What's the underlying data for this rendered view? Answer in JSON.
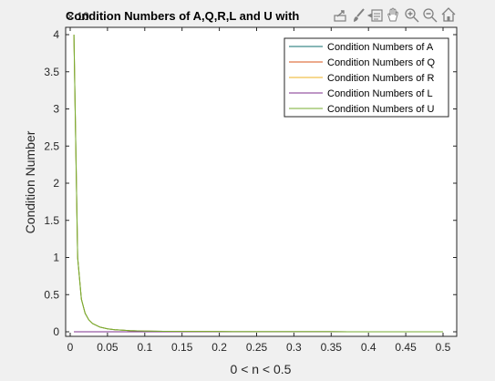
{
  "chart_data": {
    "type": "line",
    "title": "Condition Numbers of A,Q,R,L and U with",
    "xlabel": "0 < n < 0.5",
    "ylabel": "Condition Number",
    "y_exponent_label": "× 10",
    "xlim": [
      0,
      0.5
    ],
    "ylim": [
      0,
      4
    ],
    "x_ticks": [
      0,
      0.05,
      0.1,
      0.15,
      0.2,
      0.25,
      0.3,
      0.35,
      0.4,
      0.45,
      0.5
    ],
    "x_tick_labels": [
      "0",
      "0.05",
      "0.1",
      "0.15",
      "0.2",
      "0.25",
      "0.3",
      "0.35",
      "0.4",
      "0.45",
      "0.5"
    ],
    "y_ticks": [
      0,
      0.5,
      1,
      1.5,
      2,
      2.5,
      3,
      3.5,
      4
    ],
    "y_tick_labels": [
      "0",
      "0.5",
      "1",
      "1.5",
      "2",
      "2.5",
      "3",
      "3.5",
      "4"
    ],
    "legend_position": "top-right",
    "grid": false,
    "x": [
      0.005,
      0.01,
      0.015,
      0.02,
      0.025,
      0.03,
      0.04,
      0.05,
      0.06,
      0.08,
      0.1,
      0.125,
      0.15,
      0.2,
      0.25,
      0.3,
      0.35,
      0.4,
      0.45,
      0.5
    ],
    "series": [
      {
        "name": "Condition Numbers of A",
        "color": "#0f6f6f",
        "values": [
          4.0,
          1.0,
          0.44,
          0.25,
          0.16,
          0.111,
          0.0625,
          0.04,
          0.0278,
          0.0156,
          0.01,
          0.0064,
          0.0044,
          0.0025,
          0.0016,
          0.0011,
          0.0008,
          0.0006,
          0.0005,
          0.0004
        ]
      },
      {
        "name": "Condition Numbers of Q",
        "color": "#d9541a",
        "values": [
          0,
          0,
          0,
          0,
          0,
          0,
          0,
          0,
          0,
          0,
          0,
          0,
          0,
          0,
          0,
          0,
          0,
          0,
          0,
          0
        ]
      },
      {
        "name": "Condition Numbers of R",
        "color": "#edb120",
        "values": [
          4.0,
          1.0,
          0.44,
          0.25,
          0.16,
          0.111,
          0.0625,
          0.04,
          0.0278,
          0.0156,
          0.01,
          0.0064,
          0.0044,
          0.0025,
          0.0016,
          0.0011,
          0.0008,
          0.0006,
          0.0005,
          0.0004
        ]
      },
      {
        "name": "Condition Numbers of L",
        "color": "#7e2f8e",
        "values": [
          0,
          0,
          0,
          0,
          0,
          0,
          0,
          0,
          0,
          0,
          0,
          0,
          0,
          0,
          0,
          0,
          0,
          0,
          0,
          0
        ]
      },
      {
        "name": "Condition Numbers of U",
        "color": "#77ac30",
        "values": [
          4.0,
          1.0,
          0.44,
          0.25,
          0.16,
          0.111,
          0.0625,
          0.04,
          0.0278,
          0.0156,
          0.01,
          0.0064,
          0.0044,
          0.0025,
          0.0016,
          0.0011,
          0.0008,
          0.0006,
          0.0005,
          0.0004
        ]
      }
    ]
  },
  "toolbar": {
    "icons": [
      "export-icon",
      "brush-icon",
      "data-tips-icon",
      "pan-icon",
      "zoom-in-icon",
      "zoom-out-icon",
      "home-icon"
    ]
  }
}
